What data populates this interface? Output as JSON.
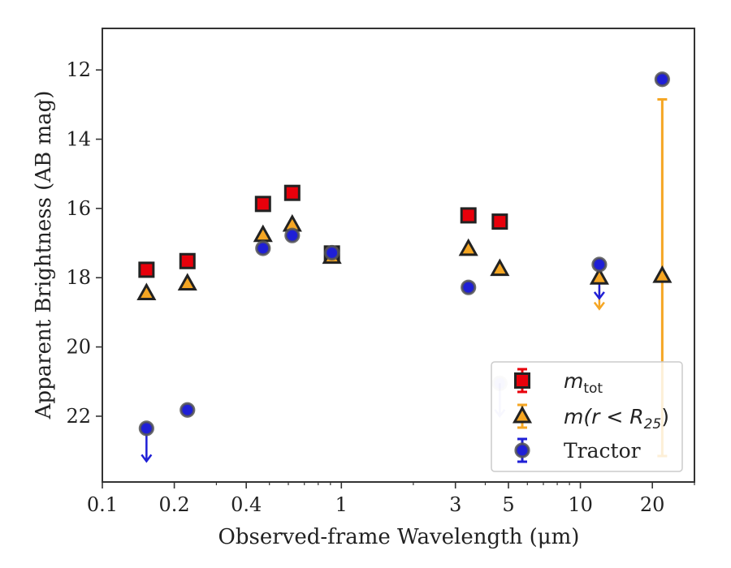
{
  "chart_data": {
    "type": "scatter",
    "xlabel": "Observed-frame Wavelength (μm)",
    "ylabel": "Apparent Brightness (AB mag)",
    "xscale": "log",
    "xlim": [
      0.1,
      30
    ],
    "ylim": [
      23.9,
      10.8
    ],
    "y_inverted": true,
    "grid": false,
    "legend_position": "lower-right",
    "x_ticks": [
      {
        "value": 0.1,
        "label": "0.1"
      },
      {
        "value": 0.2,
        "label": "0.2"
      },
      {
        "value": 0.4,
        "label": "0.4"
      },
      {
        "value": 1,
        "label": "1"
      },
      {
        "value": 3,
        "label": "3"
      },
      {
        "value": 5,
        "label": "5"
      },
      {
        "value": 10,
        "label": "10"
      },
      {
        "value": 20,
        "label": "20"
      }
    ],
    "y_ticks": [
      12,
      14,
      16,
      18,
      20,
      22
    ],
    "series": [
      {
        "name": "m_tot",
        "legend_main": "m",
        "legend_sub": "tot",
        "marker": "square",
        "color": "#e8000b",
        "edge": "#222222",
        "points": [
          {
            "x": 0.153,
            "y": 17.77
          },
          {
            "x": 0.227,
            "y": 17.52
          },
          {
            "x": 0.47,
            "y": 15.87
          },
          {
            "x": 0.623,
            "y": 15.55
          },
          {
            "x": 0.913,
            "y": 17.3
          },
          {
            "x": 3.4,
            "y": 16.2
          },
          {
            "x": 4.6,
            "y": 16.38
          }
        ]
      },
      {
        "name": "m(r < R25)",
        "legend_main": "m(r < R",
        "legend_sub": "25",
        "legend_tail": ")",
        "marker": "triangle",
        "color": "#f5a623",
        "edge": "#222222",
        "points": [
          {
            "x": 0.153,
            "y": 18.45
          },
          {
            "x": 0.227,
            "y": 18.17
          },
          {
            "x": 0.47,
            "y": 16.77
          },
          {
            "x": 0.623,
            "y": 16.47
          },
          {
            "x": 0.913,
            "y": 17.4
          },
          {
            "x": 3.4,
            "y": 17.17
          },
          {
            "x": 4.6,
            "y": 17.75
          },
          {
            "x": 12,
            "y": 18.0
          },
          {
            "x": 22,
            "y": 17.95,
            "err_low": 12.85,
            "err_high": 23.15
          }
        ],
        "upper_limits": [
          {
            "x": 12,
            "y": 18.25,
            "y_to": 18.9
          }
        ]
      },
      {
        "name": "Tractor",
        "legend_main": "Tractor",
        "marker": "circle",
        "color": "#1f1fd6",
        "edge": "#555555",
        "points": [
          {
            "x": 0.153,
            "y": 22.35
          },
          {
            "x": 0.227,
            "y": 21.82
          },
          {
            "x": 0.47,
            "y": 17.15
          },
          {
            "x": 0.623,
            "y": 16.78
          },
          {
            "x": 0.913,
            "y": 17.28
          },
          {
            "x": 3.4,
            "y": 18.28
          },
          {
            "x": 12,
            "y": 17.62
          },
          {
            "x": 22,
            "y": 12.27
          },
          {
            "x": 4.6,
            "y": 21.05,
            "faded": true
          }
        ],
        "upper_limits": [
          {
            "x": 0.153,
            "y": 22.35,
            "y_to": 23.3
          },
          {
            "x": 12,
            "y": 17.62,
            "y_to": 18.6
          },
          {
            "x": 4.6,
            "y": 21.05,
            "y_to": 22.0,
            "faded": true
          }
        ]
      }
    ]
  }
}
